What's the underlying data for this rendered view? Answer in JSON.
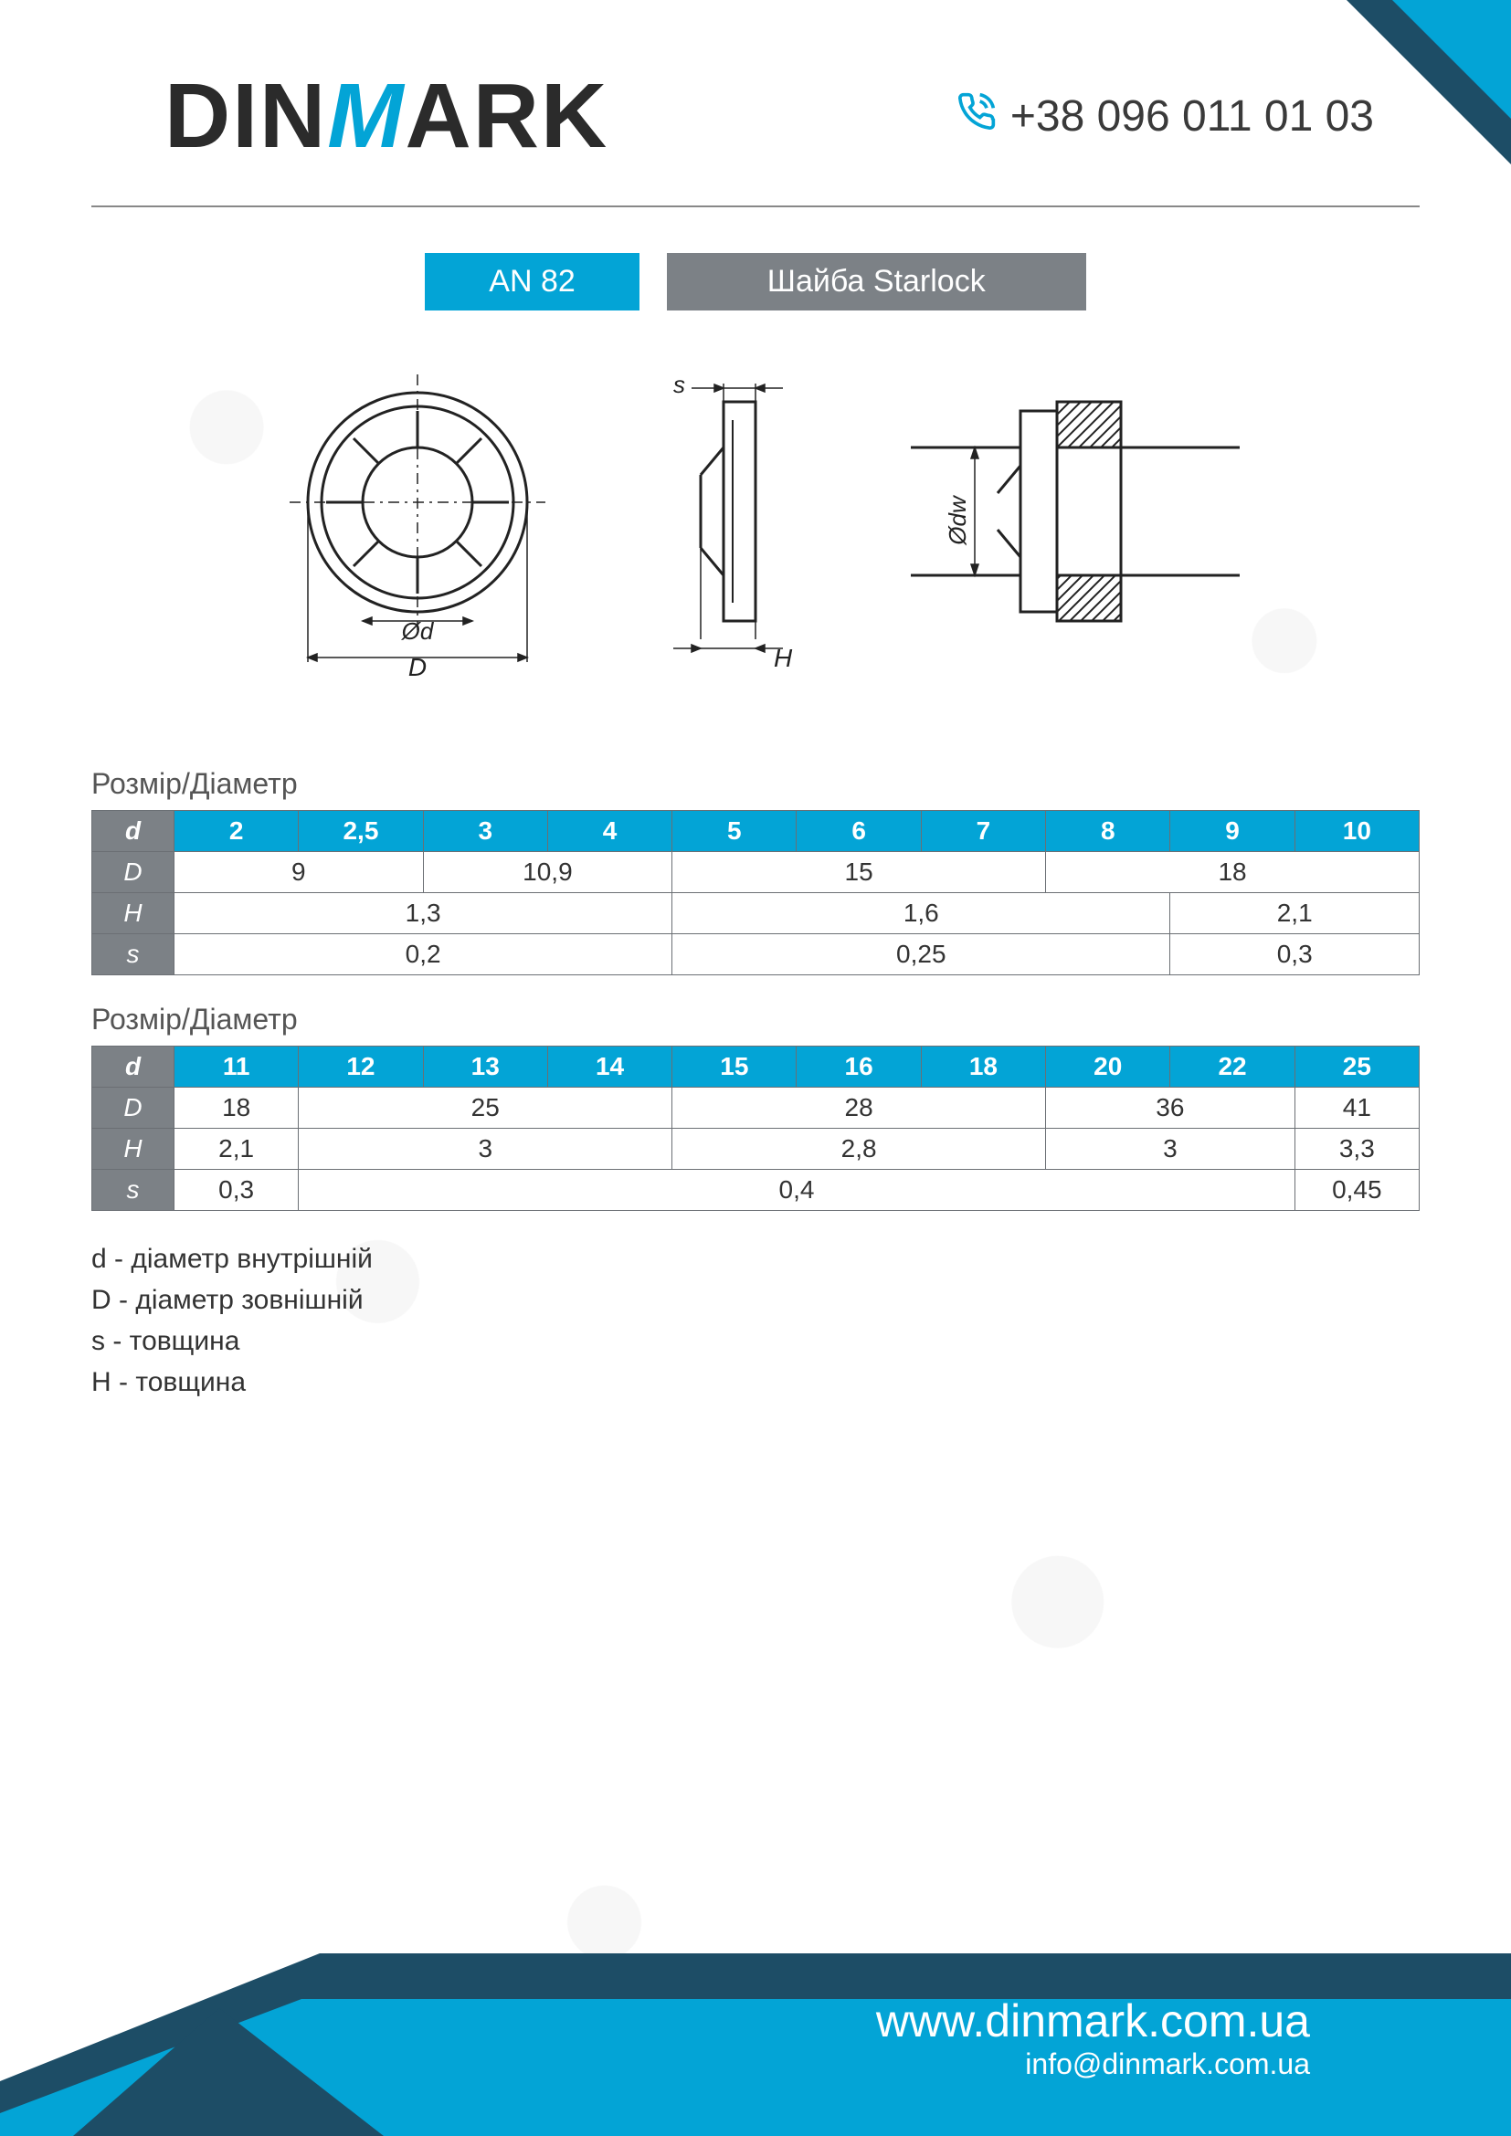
{
  "brand": {
    "part1": "DIN",
    "accent": "M",
    "part2": "ARK"
  },
  "phone": "+38 096 011 01 03",
  "title": {
    "code": "AN 82",
    "name": "Шайба Starlock"
  },
  "colors": {
    "accent": "#03a4d6",
    "grey": "#7c8186",
    "dark_navy": "#1d4d66",
    "text": "#2b2b2b"
  },
  "diagram": {
    "labels": {
      "outer_d": "Ød",
      "big_d": "D",
      "dw": "Ødw",
      "s": "s",
      "h": "H"
    }
  },
  "table_heading": "Розмір/Діаметр",
  "table1": {
    "d_label": "d",
    "D_label": "D",
    "H_label": "H",
    "s_label": "s",
    "d": [
      "2",
      "2,5",
      "3",
      "4",
      "5",
      "6",
      "7",
      "8",
      "9",
      "10"
    ],
    "D_cells": [
      {
        "span": 2,
        "val": "9"
      },
      {
        "span": 2,
        "val": "10,9"
      },
      {
        "span": 3,
        "val": "15"
      },
      {
        "span": 3,
        "val": "18"
      }
    ],
    "H_cells": [
      {
        "span": 4,
        "val": "1,3"
      },
      {
        "span": 4,
        "val": "1,6"
      },
      {
        "span": 2,
        "val": "2,1"
      }
    ],
    "s_cells": [
      {
        "span": 4,
        "val": "0,2"
      },
      {
        "span": 4,
        "val": "0,25"
      },
      {
        "span": 2,
        "val": "0,3"
      }
    ]
  },
  "table2": {
    "d": [
      "11",
      "12",
      "13",
      "14",
      "15",
      "16",
      "18",
      "20",
      "22",
      "25"
    ],
    "D_cells": [
      {
        "span": 1,
        "val": "18"
      },
      {
        "span": 3,
        "val": "25"
      },
      {
        "span": 3,
        "val": "28"
      },
      {
        "span": 2,
        "val": "36"
      },
      {
        "span": 1,
        "val": "41"
      }
    ],
    "H_cells": [
      {
        "span": 1,
        "val": "2,1"
      },
      {
        "span": 3,
        "val": "3"
      },
      {
        "span": 3,
        "val": "2,8"
      },
      {
        "span": 2,
        "val": "3"
      },
      {
        "span": 1,
        "val": "3,3"
      }
    ],
    "s_cells": [
      {
        "span": 1,
        "val": "0,3"
      },
      {
        "span": 8,
        "val": "0,4"
      },
      {
        "span": 1,
        "val": "0,45"
      }
    ]
  },
  "legend": {
    "d": "d - діаметр внутрішній",
    "D": "D - діаметр зовнішній",
    "s": "s - товщина",
    "H": "H -  товщина"
  },
  "footer": {
    "url": "www.dinmark.com.ua",
    "email": "info@dinmark.com.ua"
  }
}
